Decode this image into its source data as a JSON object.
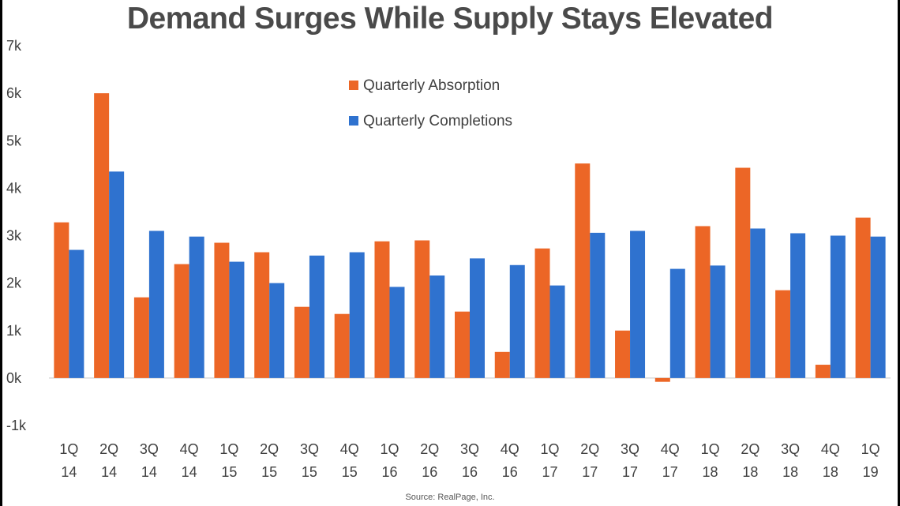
{
  "chart_data": {
    "type": "bar",
    "title": "Demand Surges While Supply Stays Elevated",
    "source": "Source: RealPage, Inc.",
    "categories": [
      [
        "1Q",
        "14"
      ],
      [
        "2Q",
        "14"
      ],
      [
        "3Q",
        "14"
      ],
      [
        "4Q",
        "14"
      ],
      [
        "1Q",
        "15"
      ],
      [
        "2Q",
        "15"
      ],
      [
        "3Q",
        "15"
      ],
      [
        "4Q",
        "15"
      ],
      [
        "1Q",
        "16"
      ],
      [
        "2Q",
        "16"
      ],
      [
        "3Q",
        "16"
      ],
      [
        "4Q",
        "16"
      ],
      [
        "1Q",
        "17"
      ],
      [
        "2Q",
        "17"
      ],
      [
        "3Q",
        "17"
      ],
      [
        "4Q",
        "17"
      ],
      [
        "1Q",
        "18"
      ],
      [
        "2Q",
        "18"
      ],
      [
        "3Q",
        "18"
      ],
      [
        "4Q",
        "18"
      ],
      [
        "1Q",
        "19"
      ]
    ],
    "series": [
      {
        "name": "Quarterly Absorption",
        "color": "#ec6626",
        "values": [
          3280,
          6000,
          1700,
          2400,
          2850,
          2650,
          1500,
          1350,
          2880,
          2900,
          1400,
          550,
          2730,
          4520,
          1000,
          -80,
          3200,
          4430,
          1850,
          280,
          3380
        ]
      },
      {
        "name": "Quarterly Completions",
        "color": "#2f72cf",
        "values": [
          2700,
          4350,
          3100,
          2980,
          2450,
          2000,
          2580,
          2650,
          1920,
          2160,
          2520,
          2380,
          1950,
          3060,
          3100,
          2300,
          2370,
          3150,
          3050,
          3000,
          2980
        ]
      }
    ],
    "yticks": [
      "7k",
      "6k",
      "5k",
      "4k",
      "3k",
      "2k",
      "1k",
      "0k",
      "-1k"
    ],
    "ylim": [
      -1000,
      7000
    ],
    "legend_position": "top-center"
  }
}
